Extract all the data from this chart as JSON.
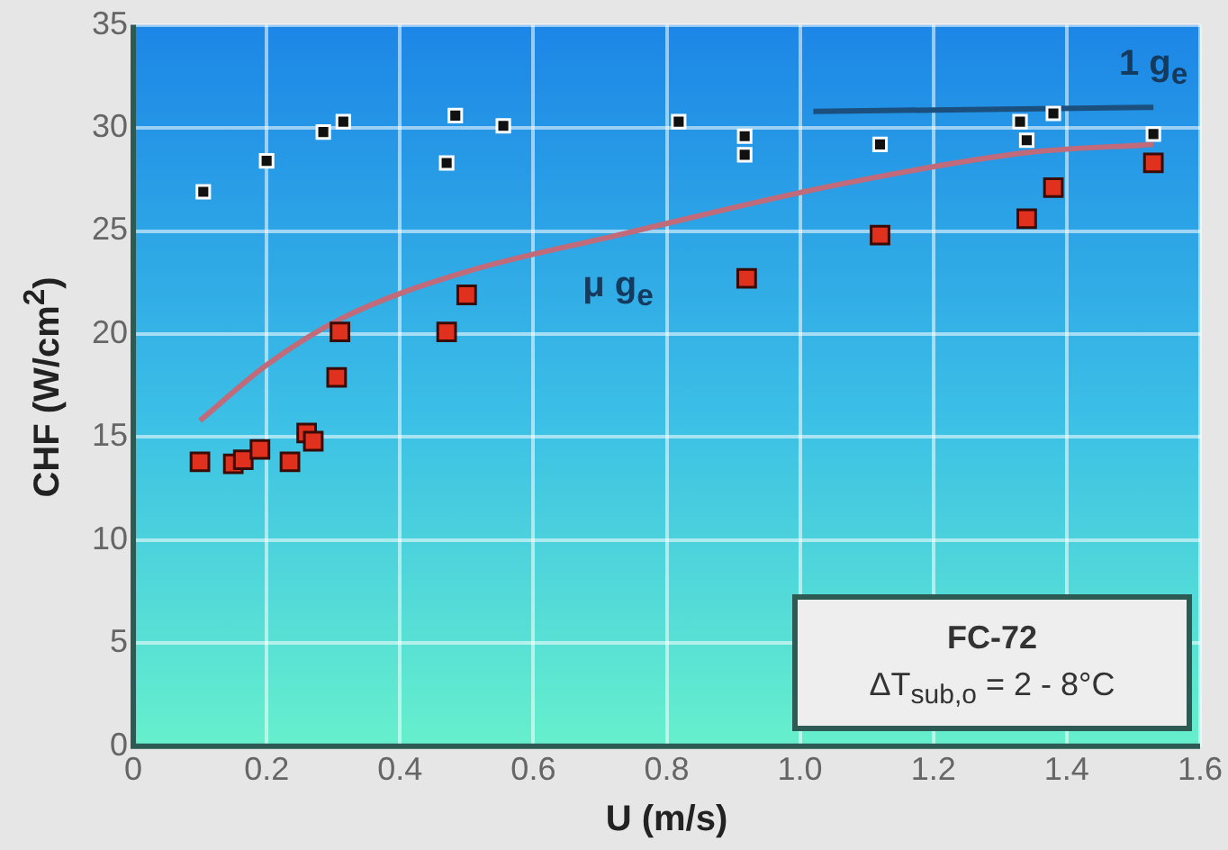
{
  "chart_data": {
    "type": "scatter",
    "xlabel": "U (m/s)",
    "ylabel": "CHF (W/cm$^{2}$)",
    "xlim": [
      0,
      1.6
    ],
    "ylim": [
      0,
      35
    ],
    "xticks": [
      0,
      0.2,
      0.4,
      0.6,
      0.8,
      {
        "value": 1,
        "label": "1.0"
      },
      1.2,
      1.4,
      1.6
    ],
    "yticks": [
      0,
      5,
      10,
      15,
      20,
      25,
      30,
      35
    ],
    "grid": true,
    "legend": false,
    "marker": "square",
    "series": [
      {
        "color": "#111111",
        "x": [
          0.105,
          0.2,
          0.285,
          0.315,
          0.483,
          0.47,
          0.555,
          0.818,
          0.917,
          0.917,
          1.12,
          1.33,
          1.34,
          1.38,
          1.53
        ],
        "values": [
          26.9,
          28.4,
          29.8,
          30.3,
          30.6,
          28.3,
          30.1,
          30.3,
          29.6,
          28.7,
          29.2,
          30.3,
          29.4,
          30.7,
          29.7
        ]
      },
      {
        "color": "#e0301e",
        "x": [
          0.1,
          0.15,
          0.165,
          0.19,
          0.235,
          0.26,
          0.27,
          0.305,
          0.31,
          0.47,
          0.5,
          0.92,
          1.12,
          1.34,
          1.38,
          1.53
        ],
        "values": [
          13.8,
          13.7,
          13.9,
          14.4,
          13.8,
          15.2,
          14.8,
          17.9,
          20.1,
          20.1,
          21.9,
          22.7,
          24.8,
          25.6,
          27.1,
          28.3
        ]
      },
      {
        "type": "line",
        "marker": "none",
        "name": "μ g$_{e}$",
        "color": "#c06a7a",
        "x": [
          0.1,
          0.2,
          0.315,
          0.497,
          0.727,
          1.05,
          1.34,
          1.53
        ],
        "values": [
          15.8,
          18.5,
          20.8,
          23.0,
          24.8,
          27.2,
          28.8,
          29.2
        ]
      },
      {
        "type": "line",
        "marker": "none",
        "name": "1 g$_{e}$",
        "color": "#1b4f7e",
        "x": [
          1.02,
          1.53
        ],
        "values": [
          30.8,
          31.0
        ]
      }
    ],
    "annotations": [
      "FC-72",
      "ΔT$_{sub,o}$ = 2 - 8°C"
    ]
  }
}
